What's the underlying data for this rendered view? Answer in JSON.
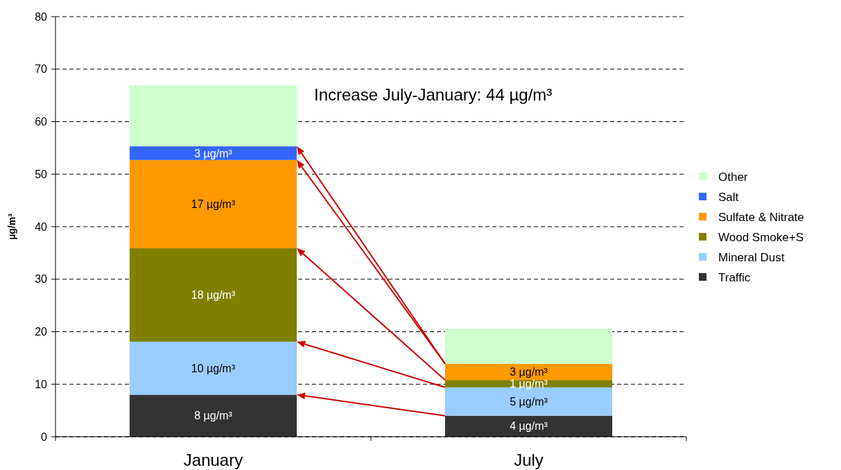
{
  "chart_data": {
    "type": "bar",
    "stacked": true,
    "categories": [
      "January",
      "July"
    ],
    "ylabel": "µg/m³",
    "ylim": [
      0,
      80
    ],
    "yticks": [
      0,
      10,
      20,
      30,
      40,
      50,
      60,
      70,
      80
    ],
    "grid": "y",
    "legend": "right",
    "annotations": [
      "Increase July-January: 44 µg/m³"
    ],
    "series": [
      {
        "name": "Traffic",
        "color": "#333333",
        "values": [
          8.0,
          4.0
        ],
        "value_labels": [
          "8 µg/m³",
          "4 µg/m³"
        ]
      },
      {
        "name": "Mineral Dust",
        "color": "#99ccff",
        "values": [
          10.1,
          5.4
        ],
        "value_labels": [
          "10 µg/m³",
          "5 µg/m³"
        ]
      },
      {
        "name": "Wood Smoke+S",
        "color": "#808000",
        "values": [
          17.8,
          1.4
        ],
        "value_labels": [
          "18 µg/m³",
          "1 µg/m³"
        ]
      },
      {
        "name": "Sulfate & Nitrate",
        "color": "#ff9900",
        "values": [
          16.8,
          3.1
        ],
        "value_labels": [
          "17 µg/m³",
          "3 µg/m³"
        ]
      },
      {
        "name": "Salt",
        "color": "#3366ff",
        "values": [
          2.6,
          0
        ],
        "value_labels": [
          "3 µg/m³",
          null
        ]
      },
      {
        "name": "Other",
        "color": "#ccffcc",
        "values": [
          11.6,
          6.7
        ],
        "value_labels": [
          null,
          null
        ]
      }
    ]
  }
}
